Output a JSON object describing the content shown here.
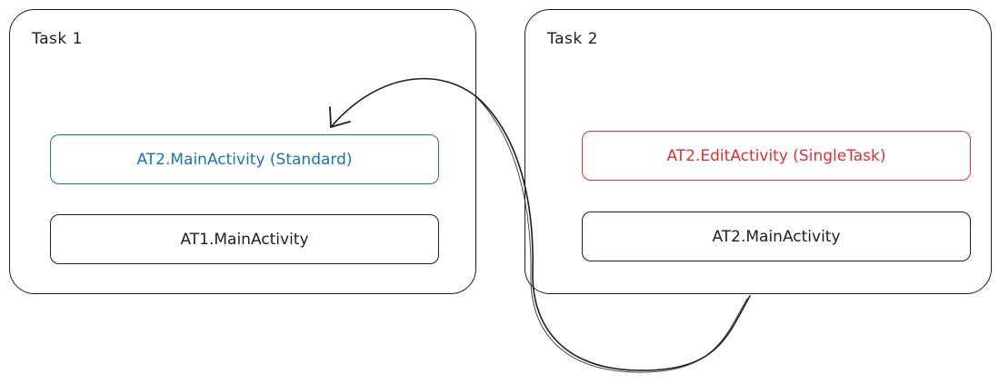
{
  "task1": {
    "label": "Task 1",
    "activities": [
      {
        "label": "AT2.MainActivity (Standard)",
        "color": "#1971c2"
      },
      {
        "label": "AT1.MainActivity",
        "color": "#1e1e1e"
      }
    ]
  },
  "task2": {
    "label": "Task 2",
    "activities": [
      {
        "label": "AT2.EditActivity (SingleTask)",
        "color": "#e03131"
      },
      {
        "label": "AT2.MainActivity",
        "color": "#1e1e1e"
      }
    ]
  },
  "connector": {
    "from": "task2",
    "to": "task1.activities.0",
    "icon": "curved-arrow"
  }
}
